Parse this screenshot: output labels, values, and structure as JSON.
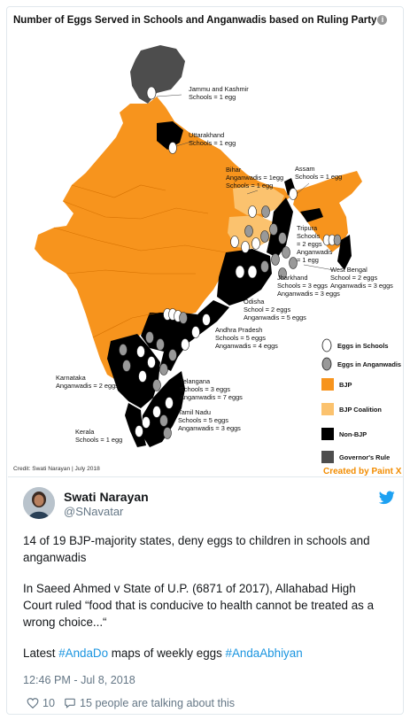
{
  "map": {
    "title": "Number of Eggs Served in Schools and Anganwadis based on Ruling Party",
    "credit": "Credit: Swati Narayan | July 2018",
    "created_by": "Created by Paint X",
    "legend": [
      {
        "label": "Eggs in Schools",
        "symbol": "white-egg"
      },
      {
        "label": "Eggs in Anganwadis",
        "symbol": "grey-egg"
      },
      {
        "label": "BJP",
        "color": "#f7941d"
      },
      {
        "label": "BJP Coalition",
        "color": "#fbc26e"
      },
      {
        "label": "Non-BJP",
        "color": "#000000"
      },
      {
        "label": "Governor's Rule",
        "color": "#4d4d4d"
      }
    ],
    "labels": {
      "jk_name": "Jammu and Kashmir",
      "jk_val": "Schools = 1 egg",
      "uk_name": "Uttarakhand",
      "uk_val": "Schools = 1 egg",
      "bihar_name": "Bihar",
      "bihar_val1": "Anganwadis = 1egg",
      "bihar_val2": "Schools = 1 egg",
      "assam_name": "Assam",
      "assam_val": "Schools = 1 egg",
      "tripura_name": "Tripura",
      "tripura_val1": "Schools",
      "tripura_val2": "= 2 eggs",
      "tripura_val3": "Anganwadis",
      "tripura_val4": "= 1 egg",
      "wb_name": "West Bengal",
      "wb_val1": "School = 2 eggs",
      "wb_val2": "Anganwadis = 3 eggs",
      "jh_name": "Jharkhand",
      "jh_val1": "Schools = 3 eggs",
      "jh_val2": "Anganwadis = 3 eggs",
      "od_name": "Odisha",
      "od_val1": "School = 2 eggs",
      "od_val2": "Anganwadis = 5 eggs",
      "ap_name": "Andhra Pradesh",
      "ap_val1": "Schools = 5 eggs",
      "ap_val2": "Anganwadis = 4 eggs",
      "tg_name": "Telangana",
      "tg_val1": "Schools = 3 eggs",
      "tg_val2": "Anganwadis = 7 eggs",
      "ka_name": "Karnataka",
      "ka_val": "Anganwadis = 2 eggs",
      "tn_name": "Tamil Nadu",
      "tn_val1": "Schools = 5 eggs",
      "tn_val2": "Anganwadis = 3 eggs",
      "kl_name": "Kerala",
      "kl_val": "Schools = 1 egg"
    }
  },
  "tweet": {
    "display_name": "Swati Narayan",
    "handle": "@SNavatar",
    "text_p1": "14 of 19 BJP-majority states, deny eggs to children in schools and anganwadis",
    "text_p2": "In Saeed Ahmed v State of U.P. (6871 of 2017), Allahabad High Court ruled “food that is conducive to health cannot be treated as a wrong choice...“",
    "text_p3_pre": "Latest ",
    "hashtag1": "#AndaDo",
    "text_p3_mid": " maps of weekly eggs ",
    "hashtag2": "#AndaAbhiyan",
    "timestamp": "12:46 PM - Jul 8, 2018",
    "likes": "10",
    "talking": "15 people are talking about this"
  },
  "colors": {
    "bjp": "#f7941d",
    "bjp_coalition": "#fbc26e",
    "non_bjp": "#000000",
    "governor": "#4d4d4d",
    "hashtag": "#1b95e0",
    "muted": "#657786"
  },
  "icons": [
    "info-icon",
    "twitter-bird-icon",
    "heart-icon",
    "reply-bubble-icon"
  ]
}
